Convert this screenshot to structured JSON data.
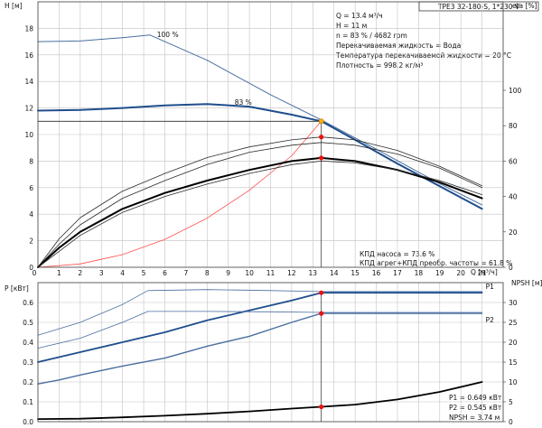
{
  "header": {
    "model": "TPE3 32-180-S, 1*230 V"
  },
  "operating_point": {
    "lines": [
      "Q = 13.4 м³/ч",
      "H = 11 м",
      "n = 83 % / 4682 rpm",
      "Перекачиваемая жидкость = Вода",
      "Температура перекачиваемой жидкости = 20 °C",
      "Плотность = 998.2 кг/м³"
    ],
    "efficiency_lines": [
      "КПД насоса = 73.6 %",
      "КПД агрег+КПД преобр. частоты = 61.8 %"
    ],
    "power_lines": [
      "P1 = 0.649 кВт",
      "P2 = 0.545 кВт",
      "NPSH = 3.74 м"
    ]
  },
  "chart_data": [
    {
      "type": "line",
      "panel": "head_and_efficiency",
      "xlabel": "Q [м³/ч]",
      "ylabel_left": "H [м]",
      "ylabel_right": "eta [%]",
      "xlim": [
        0,
        22
      ],
      "ylim": [
        0,
        20
      ],
      "y2lim": [
        0,
        150
      ],
      "x_ticks": [
        1,
        2,
        3,
        4,
        5,
        6,
        7,
        8,
        9,
        10,
        11,
        12,
        13,
        14,
        15,
        16,
        17,
        18,
        19,
        20,
        21
      ],
      "y_ticks": [
        0,
        2,
        4,
        6,
        8,
        10,
        12,
        14,
        16,
        18
      ],
      "y2_ticks": [
        0,
        20,
        40,
        60,
        80,
        100
      ],
      "grid": true,
      "series": [
        {
          "name": "100 %",
          "axis": "H",
          "color": "#4a6fa0",
          "width": 1.0,
          "x": [
            0,
            2,
            4,
            5.3,
            8,
            11,
            13.4,
            16,
            19,
            21
          ],
          "y": [
            17.0,
            17.05,
            17.3,
            17.5,
            15.6,
            13.0,
            11.1,
            8.9,
            6.3,
            4.7
          ]
        },
        {
          "name": "83 %",
          "axis": "H",
          "color": "#1f4e8c",
          "width": 2.0,
          "x": [
            0,
            2,
            4,
            6,
            8,
            10,
            12,
            13.4,
            15,
            17,
            19,
            21
          ],
          "y": [
            11.8,
            11.85,
            12.0,
            12.2,
            12.3,
            12.1,
            11.5,
            11.0,
            9.6,
            7.8,
            6.1,
            4.4
          ]
        },
        {
          "name": "",
          "axis": "H",
          "color": "#2b2b2b",
          "width": 0.8,
          "x": [
            0,
            13.4
          ],
          "y": [
            11.0,
            11.0
          ]
        },
        {
          "name": "",
          "axis": "H",
          "color": "#ff5050",
          "width": 0.8,
          "x": [
            0,
            2,
            4,
            6,
            8,
            10,
            12,
            13.4
          ],
          "y": [
            0,
            0.25,
            0.95,
            2.1,
            3.7,
            5.8,
            8.4,
            11.0
          ]
        },
        {
          "name": "",
          "axis": "eta",
          "color": "#2b2b2b",
          "width": 0.8,
          "x": [
            0,
            1,
            2,
            4,
            6,
            8,
            10,
            12,
            13.4,
            15,
            17,
            19,
            21
          ],
          "y": [
            0,
            16,
            28,
            43,
            53,
            62,
            68,
            72,
            73.6,
            72,
            66,
            57,
            46
          ]
        },
        {
          "name": "",
          "axis": "eta",
          "color": "#2b2b2b",
          "width": 0.8,
          "x": [
            0,
            1,
            2,
            4,
            6,
            8,
            10,
            12,
            13.4,
            15,
            17,
            19,
            21
          ],
          "y": [
            0,
            13,
            24,
            39,
            49,
            58,
            65,
            69,
            70.5,
            69,
            64,
            56,
            45
          ]
        },
        {
          "name": "",
          "axis": "eta",
          "color": "#000000",
          "width": 2.0,
          "x": [
            0,
            1,
            2,
            4,
            6,
            8,
            10,
            12,
            13.4,
            15,
            17,
            19,
            21
          ],
          "y": [
            0,
            11,
            20,
            33,
            42,
            49,
            55,
            60,
            61.8,
            60,
            55,
            48,
            39
          ]
        },
        {
          "name": "",
          "axis": "eta",
          "color": "#2b2b2b",
          "width": 0.8,
          "x": [
            0,
            1,
            2,
            4,
            6,
            8,
            10,
            12,
            13.4,
            15,
            17,
            19,
            21
          ],
          "y": [
            0,
            9,
            18,
            31,
            40,
            47,
            53,
            58,
            60,
            59,
            55,
            49,
            41
          ]
        }
      ],
      "points": [
        {
          "x": 13.4,
          "y": 11.0,
          "axis": "H",
          "color": "#ffb000"
        },
        {
          "x": 13.4,
          "y": 73.6,
          "axis": "eta",
          "color": "#ee1111"
        },
        {
          "x": 13.4,
          "y": 61.8,
          "axis": "eta",
          "color": "#ee1111"
        }
      ]
    },
    {
      "type": "line",
      "panel": "power_and_npsh",
      "ylabel_left": "P [кВт]",
      "ylabel_right": "NPSH [м]",
      "xlim": [
        0,
        22
      ],
      "ylim": [
        0,
        0.7
      ],
      "y2lim": [
        0,
        35
      ],
      "y_ticks": [
        0.0,
        0.1,
        0.2,
        0.3,
        0.4,
        0.5,
        0.6
      ],
      "y2_ticks": [
        0,
        5,
        10,
        15,
        20,
        25,
        30
      ],
      "grid": true,
      "series": [
        {
          "name": "",
          "axis": "P",
          "color": "#4a6fa0",
          "width": 0.8,
          "x": [
            0,
            2,
            4,
            5.2,
            8,
            11,
            13.4,
            16,
            19,
            21
          ],
          "y": [
            0.435,
            0.5,
            0.59,
            0.66,
            0.665,
            0.66,
            0.655,
            0.655,
            0.655,
            0.655
          ]
        },
        {
          "name": "P1",
          "axis": "P",
          "color": "#1f4e8c",
          "width": 1.8,
          "x": [
            0,
            1,
            2,
            4,
            6,
            8,
            10,
            12,
            13.4,
            16,
            19,
            21
          ],
          "y": [
            0.3,
            0.325,
            0.35,
            0.4,
            0.45,
            0.51,
            0.56,
            0.61,
            0.649,
            0.649,
            0.649,
            0.649
          ]
        },
        {
          "name": "",
          "axis": "P",
          "color": "#4a6fa0",
          "width": 0.8,
          "x": [
            0,
            2,
            4,
            5.2,
            8,
            11,
            13.4,
            16,
            19,
            21
          ],
          "y": [
            0.37,
            0.42,
            0.5,
            0.555,
            0.555,
            0.553,
            0.55,
            0.55,
            0.55,
            0.55
          ]
        },
        {
          "name": "P2",
          "axis": "P",
          "color": "#4a6fa0",
          "width": 1.4,
          "x": [
            0,
            1,
            2,
            4,
            6,
            8,
            10,
            12,
            13.4,
            16,
            19,
            21
          ],
          "y": [
            0.19,
            0.21,
            0.235,
            0.28,
            0.32,
            0.38,
            0.43,
            0.5,
            0.545,
            0.545,
            0.545,
            0.545
          ]
        },
        {
          "name": "",
          "axis": "NPSH",
          "color": "#000000",
          "width": 1.8,
          "x": [
            0,
            2,
            4,
            6,
            8,
            10,
            12,
            13.4,
            15,
            17,
            19,
            21
          ],
          "y": [
            0.65,
            0.75,
            1.1,
            1.5,
            2.0,
            2.6,
            3.3,
            3.74,
            4.3,
            5.6,
            7.5,
            10.0
          ]
        }
      ],
      "points": [
        {
          "x": 13.4,
          "y": 0.649,
          "axis": "P",
          "color": "#ee1111"
        },
        {
          "x": 13.4,
          "y": 0.545,
          "axis": "P",
          "color": "#ee1111"
        },
        {
          "x": 13.4,
          "y": 3.74,
          "axis": "NPSH",
          "color": "#ee1111"
        }
      ]
    }
  ]
}
